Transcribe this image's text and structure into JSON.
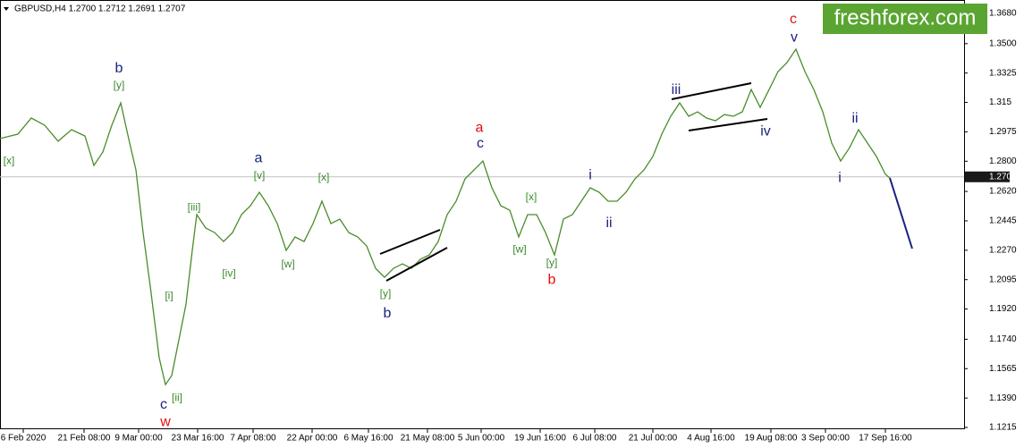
{
  "chart_data": {
    "type": "line",
    "title": "GBPUSD,H4  1.2700 1.2712 1.2691 1.2707",
    "watermark": "freshforex.com",
    "current_price": 1.2707,
    "xlim": [
      0,
      107.8
    ],
    "ylim": [
      1.1215,
      1.368
    ],
    "yticks": [
      {
        "value": 1.368,
        "label": "1.3680"
      },
      {
        "value": 1.35,
        "label": "1.3500"
      },
      1.3325,
      1.315,
      1.2975,
      {
        "value": 1.28,
        "label": "1.2800"
      },
      {
        "value": 1.262,
        "label": "1.2620"
      },
      1.2445,
      {
        "value": 1.227,
        "label": "1.2270"
      },
      1.2095,
      {
        "value": 1.192,
        "label": "1.1920"
      },
      {
        "value": 1.174,
        "label": "1.1740"
      },
      1.1565,
      {
        "value": 1.139,
        "label": "1.1390"
      },
      1.1215
    ],
    "xticks": [
      {
        "value": 2.6,
        "label": "6 Feb 2020"
      },
      {
        "value": 9.4,
        "label": "21 Feb 08:00"
      },
      {
        "value": 15.5,
        "label": "9 Mar 00:00"
      },
      {
        "value": 22.1,
        "label": "23 Mar 16:00"
      },
      {
        "value": 28.3,
        "label": "7 Apr 08:00"
      },
      {
        "value": 34.9,
        "label": "22 Apr 00:00"
      },
      {
        "value": 41.2,
        "label": "6 May 16:00"
      },
      {
        "value": 47.8,
        "label": "21 May 08:00"
      },
      {
        "value": 53.8,
        "label": "5 Jun 00:00"
      },
      {
        "value": 60.4,
        "label": "19 Jun 16:00"
      },
      {
        "value": 66.5,
        "label": "6 Jul 08:00"
      },
      {
        "value": 73,
        "label": "21 Jul 00:00"
      },
      {
        "value": 79.5,
        "label": "4 Aug 16:00"
      },
      {
        "value": 86.2,
        "label": "19 Aug 08:00"
      },
      {
        "value": 92.3,
        "label": "3 Sep 00:00"
      },
      {
        "value": 99,
        "label": "17 Sep 16:00"
      }
    ],
    "series": [
      {
        "color": "#4a8c2a",
        "x": [
          0,
          2,
          3.5,
          5,
          6.5,
          8,
          9.5,
          10.5,
          11.5,
          12.5,
          13.5,
          14.5,
          15.2,
          16,
          16.8,
          17.8,
          18.5,
          19.2,
          20,
          20.8,
          21.5,
          22,
          23,
          24,
          25,
          26,
          27,
          28,
          29,
          30,
          31,
          32,
          33,
          34,
          35,
          36,
          37,
          38,
          39,
          40,
          41,
          42,
          43,
          44,
          45,
          46,
          47,
          48,
          49,
          50,
          51,
          52,
          53,
          54,
          55,
          56,
          57,
          58,
          59,
          60,
          61,
          62,
          63,
          64,
          65,
          66,
          67,
          68,
          69,
          70,
          71,
          72,
          73,
          74,
          75,
          76,
          77,
          78,
          79,
          80,
          81,
          82,
          83,
          84,
          85,
          86,
          87,
          88,
          89,
          90,
          91,
          92,
          93,
          94,
          95,
          96,
          97,
          98,
          99,
          99.5
        ],
        "values": [
          1.2935,
          1.2961,
          1.3057,
          1.3014,
          1.2919,
          1.2988,
          1.295,
          1.2775,
          1.2855,
          1.3014,
          1.3147,
          1.2908,
          1.2748,
          1.2375,
          1.2056,
          1.163,
          1.147,
          1.1523,
          1.1736,
          1.1949,
          1.2269,
          1.2482,
          1.2402,
          1.2375,
          1.2322,
          1.2375,
          1.2482,
          1.2535,
          1.2615,
          1.2535,
          1.2429,
          1.2269,
          1.2349,
          1.2322,
          1.2429,
          1.2562,
          1.2429,
          1.2455,
          1.2375,
          1.2349,
          1.2295,
          1.2162,
          1.2109,
          1.2162,
          1.2189,
          1.2162,
          1.2216,
          1.2242,
          1.2322,
          1.2482,
          1.2562,
          1.2695,
          1.2748,
          1.2801,
          1.2642,
          1.2535,
          1.2508,
          1.2349,
          1.2482,
          1.2482,
          1.2375,
          1.2242,
          1.2455,
          1.2482,
          1.2562,
          1.2642,
          1.2615,
          1.2562,
          1.2562,
          1.2615,
          1.2695,
          1.2748,
          1.2828,
          1.2961,
          1.3068,
          1.3147,
          1.3068,
          1.3094,
          1.3057,
          1.3041,
          1.3078,
          1.3068,
          1.3094,
          1.3227,
          1.3121,
          1.3227,
          1.3334,
          1.3387,
          1.3467,
          1.3334,
          1.3227,
          1.3094,
          1.2908,
          1.2801,
          1.2881,
          1.2988,
          1.2908,
          1.2828,
          1.2722,
          1.27
        ]
      },
      {
        "color": "#1a237e",
        "x": [
          99.5,
          102
        ],
        "values": [
          1.27,
          1.228
        ]
      }
    ],
    "annotations": [
      {
        "text": "[x]",
        "x": 1,
        "y": 1.2801,
        "color": "#3a8a2a"
      },
      {
        "text": "b",
        "x": 13.3,
        "y": 1.335,
        "color": "#1a237e"
      },
      {
        "text": "[y]",
        "x": 13.3,
        "y": 1.3249,
        "color": "#3a8a2a"
      },
      {
        "text": "c",
        "x": 18.3,
        "y": 1.1348,
        "color": "#1a237e"
      },
      {
        "text": "w",
        "x": 18.5,
        "y": 1.1246,
        "color": "#e01010"
      },
      {
        "text": "[i]",
        "x": 18.9,
        "y": 1.1997,
        "color": "#3a8a2a"
      },
      {
        "text": "[ii]",
        "x": 19.8,
        "y": 1.139,
        "color": "#3a8a2a"
      },
      {
        "text": "[iii]",
        "x": 21.7,
        "y": 1.2524,
        "color": "#3a8a2a"
      },
      {
        "text": "[iv]",
        "x": 25.6,
        "y": 1.213,
        "color": "#3a8a2a"
      },
      {
        "text": "a",
        "x": 28.9,
        "y": 1.2817,
        "color": "#1a237e"
      },
      {
        "text": "[v]",
        "x": 29,
        "y": 1.2711,
        "color": "#3a8a2a"
      },
      {
        "text": "[w]",
        "x": 32.2,
        "y": 1.2184,
        "color": "#3a8a2a"
      },
      {
        "text": "[x]",
        "x": 36.2,
        "y": 1.27,
        "color": "#3a8a2a"
      },
      {
        "text": "[y]",
        "x": 43.1,
        "y": 1.2008,
        "color": "#3a8a2a"
      },
      {
        "text": "b",
        "x": 43.3,
        "y": 1.1891,
        "color": "#1a237e"
      },
      {
        "text": "a",
        "x": 53.6,
        "y": 1.2998,
        "color": "#e01010"
      },
      {
        "text": "c",
        "x": 53.7,
        "y": 1.2903,
        "color": "#1a237e"
      },
      {
        "text": "[x]",
        "x": 59.4,
        "y": 1.2583,
        "color": "#3a8a2a"
      },
      {
        "text": "[w]",
        "x": 58.1,
        "y": 1.2274,
        "color": "#3a8a2a"
      },
      {
        "text": "[y]",
        "x": 61.7,
        "y": 1.2194,
        "color": "#3a8a2a"
      },
      {
        "text": "b",
        "x": 61.7,
        "y": 1.2093,
        "color": "#e01010"
      },
      {
        "text": "i",
        "x": 66,
        "y": 1.2716,
        "color": "#1a237e"
      },
      {
        "text": "ii",
        "x": 68.1,
        "y": 1.2429,
        "color": "#1a237e"
      },
      {
        "text": "iii",
        "x": 75.6,
        "y": 1.3222,
        "color": "#1a237e"
      },
      {
        "text": "iv",
        "x": 85.6,
        "y": 1.2977,
        "color": "#1a237e"
      },
      {
        "text": "c",
        "x": 88.7,
        "y": 1.3643,
        "color": "#e01010"
      },
      {
        "text": "v",
        "x": 88.8,
        "y": 1.3536,
        "color": "#1a237e"
      },
      {
        "text": "ii",
        "x": 95.6,
        "y": 1.3052,
        "color": "#1a237e"
      },
      {
        "text": "i",
        "x": 93.9,
        "y": 1.27,
        "color": "#1a237e"
      }
    ]
  }
}
